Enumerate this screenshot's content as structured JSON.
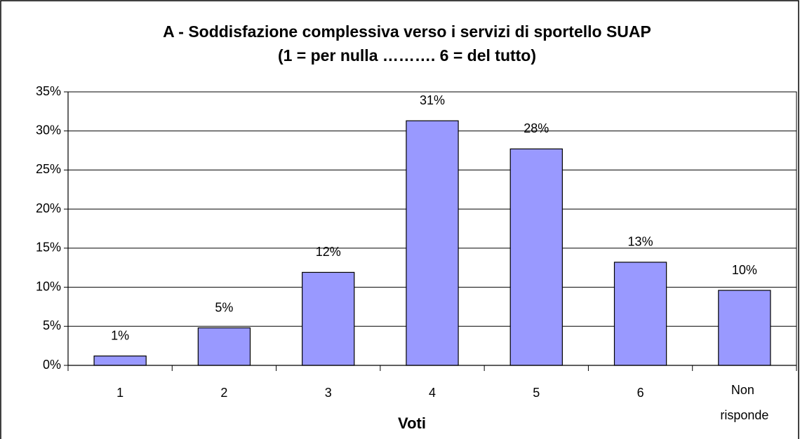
{
  "chart_data": {
    "type": "bar",
    "title": "A - Soddisfazione complessiva verso i servizi di sportello SUAP",
    "subtitle": "(1 = per nulla ………. 6 = del tutto)",
    "x_label": "Voti",
    "categories": [
      "1",
      "2",
      "3",
      "4",
      "5",
      "6",
      "Non risponde"
    ],
    "values": [
      1.2,
      4.8,
      11.9,
      31.3,
      27.7,
      13.2,
      9.6
    ],
    "value_labels": [
      "1%",
      "5%",
      "12%",
      "31%",
      "28%",
      "13%",
      "10%"
    ],
    "color": "#9999ff",
    "ylim": [
      0,
      35
    ],
    "yticks": [
      {
        "value": 0,
        "label": "0%"
      },
      {
        "value": 5,
        "label": "5%"
      },
      {
        "value": 10,
        "label": "10%"
      },
      {
        "value": 15,
        "label": "15%"
      },
      {
        "value": 20,
        "label": "20%"
      },
      {
        "value": 25,
        "label": "25%"
      },
      {
        "value": 30,
        "label": "30%"
      },
      {
        "value": 35,
        "label": "35%"
      }
    ],
    "grid": true
  }
}
